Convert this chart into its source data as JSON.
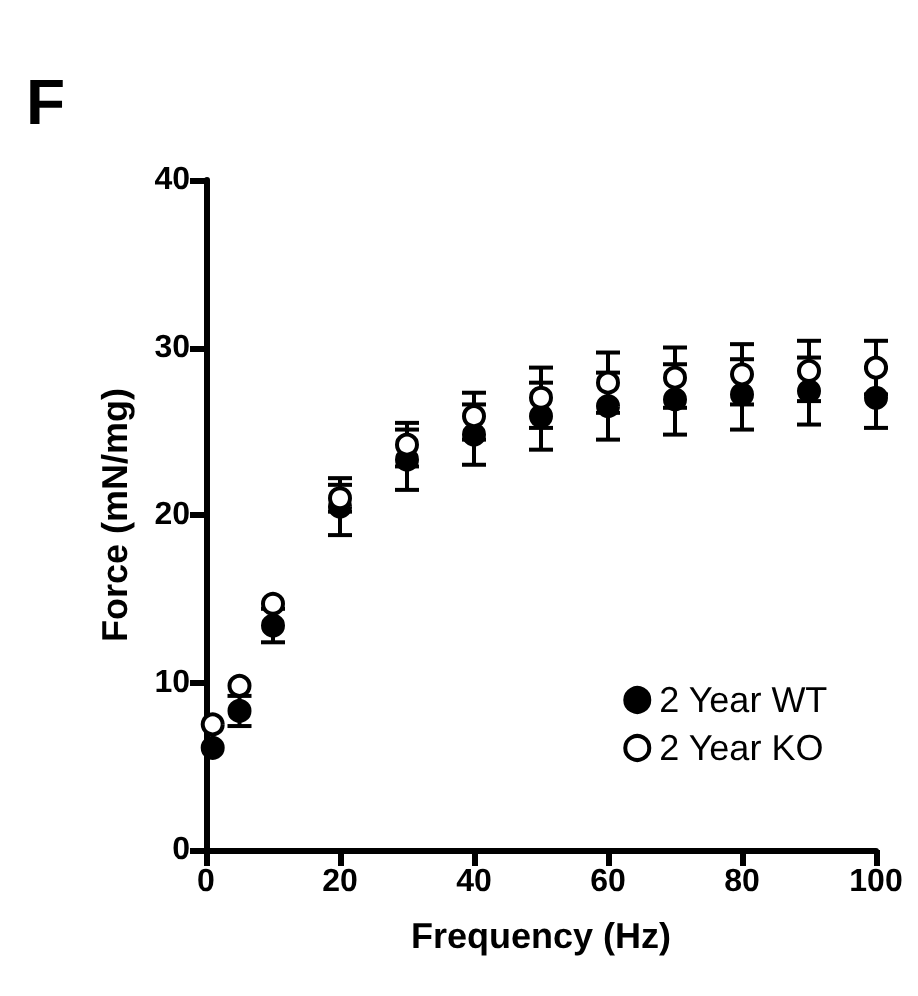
{
  "chart_data": {
    "type": "scatter",
    "xlabel": "Frequency (Hz)",
    "ylabel": "Force (mN/mg)",
    "annotations": [
      "F"
    ],
    "x": [
      1,
      5,
      10,
      20,
      30,
      40,
      50,
      60,
      70,
      80,
      90,
      100
    ],
    "series": [
      {
        "name": "2 Year WT",
        "color": "#000000",
        "values": [
          6.1,
          8.3,
          13.4,
          20.5,
          23.3,
          24.8,
          25.9,
          26.5,
          26.9,
          27.2,
          27.4,
          27.0
        ],
        "errors": [
          null,
          0.9,
          1.0,
          1.7,
          1.8,
          1.8,
          2.0,
          2.0,
          2.1,
          2.1,
          2.0,
          1.8
        ]
      },
      {
        "name": "2 Year KO",
        "color": "#000000",
        "values": [
          7.5,
          9.8,
          14.7,
          21.0,
          24.2,
          25.9,
          27.0,
          27.9,
          28.2,
          28.4,
          28.6,
          28.8
        ],
        "errors": [
          null,
          null,
          null,
          0.8,
          1.3,
          1.4,
          1.8,
          1.8,
          1.8,
          1.8,
          1.8,
          1.6
        ]
      }
    ],
    "xlim": [
      0,
      100
    ],
    "xticks": [
      0,
      20,
      40,
      60,
      80,
      100
    ],
    "ylim": [
      0,
      40
    ],
    "yticks": [
      0,
      10,
      20,
      30,
      40
    ],
    "grid": false,
    "legend": "bottom right",
    "marker": "circle"
  }
}
